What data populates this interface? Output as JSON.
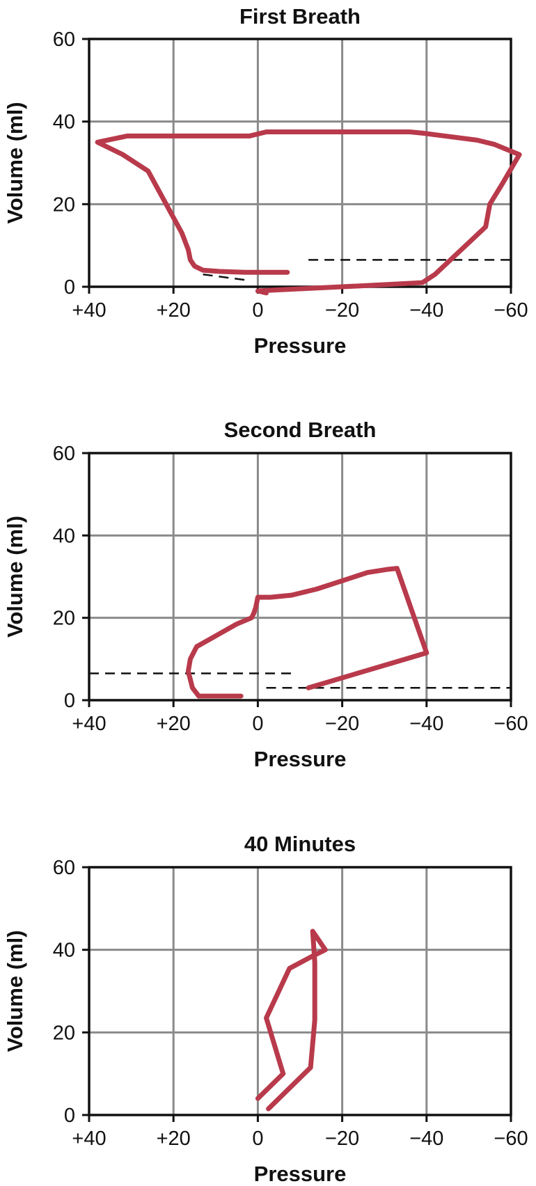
{
  "colors": {
    "curve": "#B83A4B",
    "grid": "#8a8a8a",
    "axis": "#111111"
  },
  "chart_data": [
    {
      "type": "line",
      "title": "First Breath",
      "xlabel": "Pressure",
      "ylabel": "Volume (ml)",
      "x_ticks": [
        40,
        20,
        0,
        -20,
        -40,
        -60
      ],
      "x_tick_labels": [
        "+40",
        "+20",
        "0",
        "−20",
        "−40",
        "−60"
      ],
      "y_ticks": [
        0,
        20,
        40,
        60
      ],
      "y_tick_labels": [
        "0",
        "20",
        "40",
        "60"
      ],
      "xlim": [
        40,
        -60
      ],
      "ylim": [
        0,
        60
      ],
      "grid": true,
      "series": [
        {
          "x": [
            -7,
            -1,
            3,
            9,
            13,
            15,
            16,
            16.5,
            18,
            26,
            32,
            38,
            31,
            20,
            8,
            2,
            0,
            -2,
            -10,
            -20,
            -30,
            -36,
            -39,
            -52,
            -56,
            -62,
            -58,
            -55,
            -54,
            -42,
            -39,
            -30,
            -20,
            0,
            -2
          ],
          "y": [
            3.5,
            3.5,
            3.5,
            3.7,
            4,
            5,
            6.5,
            9,
            13,
            28,
            32,
            35,
            36.5,
            36.5,
            36.5,
            36.5,
            37,
            37.5,
            37.5,
            37.5,
            37.5,
            37.5,
            37.2,
            35.5,
            34.5,
            32,
            25,
            20,
            14.5,
            3,
            1,
            0.5,
            0,
            -1,
            -1.5
          ]
        }
      ],
      "ref_lines": [
        {
          "x": [
            -12,
            -60
          ],
          "y": [
            6.5,
            6.5
          ]
        },
        {
          "x": [
            13,
            2
          ],
          "y": [
            3,
            1.5
          ]
        }
      ]
    },
    {
      "type": "line",
      "title": "Second Breath",
      "xlabel": "Pressure",
      "ylabel": "Volume (ml)",
      "x_ticks": [
        40,
        20,
        0,
        -20,
        -40,
        -60
      ],
      "x_tick_labels": [
        "+40",
        "+20",
        "0",
        "−20",
        "−40",
        "−60"
      ],
      "y_ticks": [
        0,
        20,
        40,
        60
      ],
      "y_tick_labels": [
        "0",
        "20",
        "40",
        "60"
      ],
      "xlim": [
        40,
        -60
      ],
      "ylim": [
        0,
        60
      ],
      "grid": true,
      "series": [
        {
          "x": [
            4,
            14,
            15.5,
            16.5,
            16,
            14.5,
            5,
            1.5,
            1,
            0.5,
            0,
            -3,
            -8,
            -14,
            -20,
            -26,
            -31,
            -33,
            -40,
            -12
          ],
          "y": [
            1,
            1,
            3,
            7,
            10,
            13,
            18.5,
            20,
            21,
            22.5,
            25,
            25,
            25.5,
            27,
            29,
            31,
            31.8,
            32,
            11.5,
            3
          ]
        }
      ],
      "ref_lines": [
        {
          "x": [
            40,
            -8
          ],
          "y": [
            6.5,
            6.5
          ]
        },
        {
          "x": [
            -2,
            -60
          ],
          "y": [
            3,
            3
          ]
        }
      ]
    },
    {
      "type": "line",
      "title": "40 Minutes",
      "xlabel": "Pressure",
      "ylabel": "Volume (ml)",
      "x_ticks": [
        40,
        20,
        0,
        -20,
        -40,
        -60
      ],
      "x_tick_labels": [
        "+40",
        "+20",
        "0",
        "−20",
        "−40",
        "−60"
      ],
      "y_ticks": [
        0,
        20,
        40,
        60
      ],
      "y_tick_labels": [
        "0",
        "20",
        "40",
        "60"
      ],
      "xlim": [
        40,
        -60
      ],
      "ylim": [
        0,
        60
      ],
      "grid": true,
      "series": [
        {
          "x": [
            -2.5,
            -12.5,
            -13.5,
            -13.5,
            -13,
            -16,
            -13,
            -7.5,
            -2,
            -6,
            0
          ],
          "y": [
            1.5,
            11.5,
            23,
            37,
            44.5,
            40,
            38.5,
            35.5,
            23.5,
            10,
            4
          ]
        }
      ],
      "ref_lines": []
    }
  ]
}
